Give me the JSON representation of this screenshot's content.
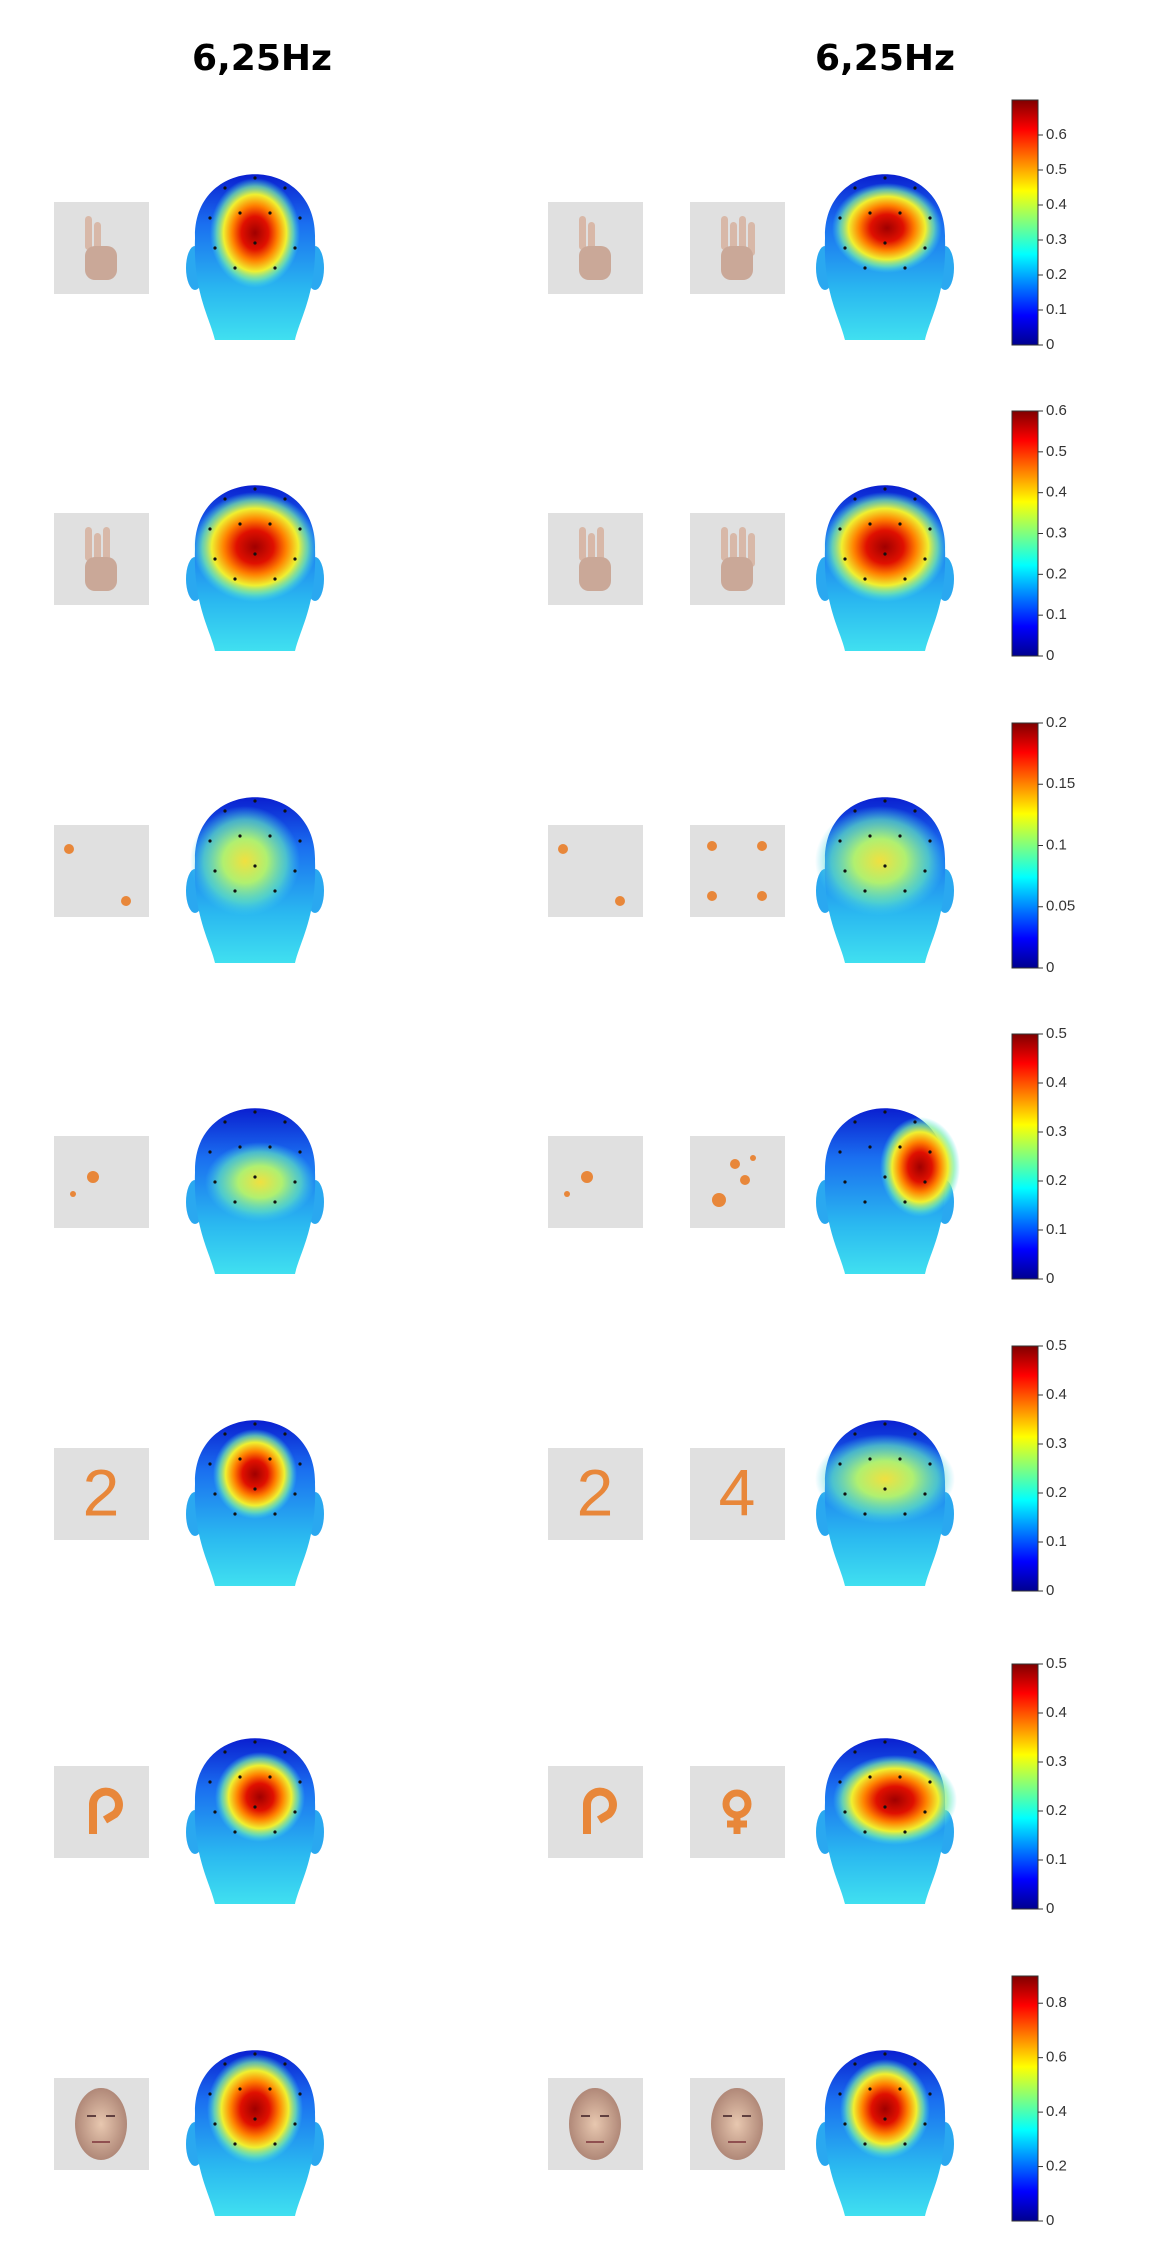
{
  "headers": [
    "6,25Hz",
    "6,25Hz"
  ],
  "rows": [
    {
      "colorbar": {
        "lim": [
          0,
          0.7
        ],
        "ticks": [
          0,
          0.1,
          0.2,
          0.3,
          0.4,
          0.5,
          0.6
        ]
      }
    },
    {
      "colorbar": {
        "lim": [
          0,
          0.6
        ],
        "ticks": [
          0,
          0.1,
          0.2,
          0.3,
          0.4,
          0.5,
          0.6
        ]
      }
    },
    {
      "colorbar": {
        "lim": [
          0,
          0.2
        ],
        "ticks": [
          0,
          0.05,
          0.1,
          0.15,
          0.2
        ]
      }
    },
    {
      "colorbar": {
        "lim": [
          0,
          0.5
        ],
        "ticks": [
          0,
          0.1,
          0.2,
          0.3,
          0.4,
          0.5
        ]
      }
    },
    {
      "digits": [
        "2",
        "2",
        "4"
      ],
      "colorbar": {
        "lim": [
          0,
          0.5
        ],
        "ticks": [
          0,
          0.1,
          0.2,
          0.3,
          0.4,
          0.5
        ]
      }
    },
    {
      "colorbar": {
        "lim": [
          0,
          0.5
        ],
        "ticks": [
          0,
          0.1,
          0.2,
          0.3,
          0.4,
          0.5
        ]
      }
    },
    {
      "colorbar": {
        "lim": [
          0,
          0.9
        ],
        "ticks": [
          0,
          0.2,
          0.4,
          0.6,
          0.8
        ]
      }
    }
  ]
}
